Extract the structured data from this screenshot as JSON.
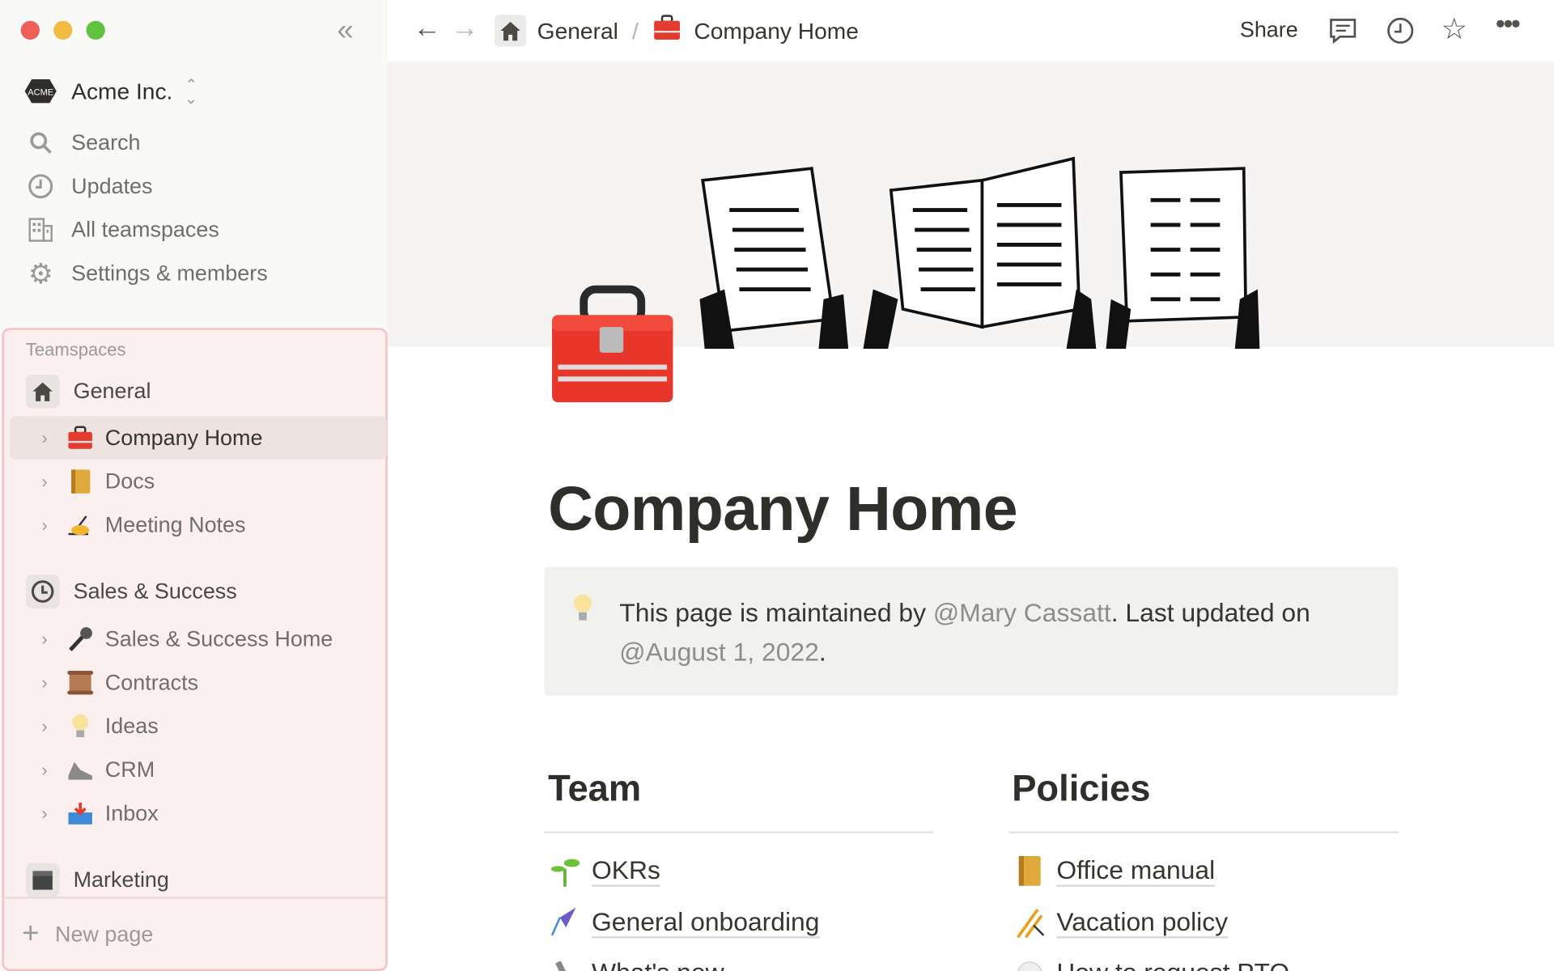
{
  "window": {
    "controls": [
      "close",
      "minimize",
      "zoom"
    ],
    "colors": {
      "close": "#ee5f57",
      "minimize": "#f0bc43",
      "zoom": "#60c23f"
    }
  },
  "sidebar": {
    "workspace": {
      "logo_text": "ACME",
      "name": "Acme Inc."
    },
    "nav": [
      {
        "label": "Search",
        "icon": "search-icon"
      },
      {
        "label": "Updates",
        "icon": "clock-icon"
      },
      {
        "label": "All teamspaces",
        "icon": "building-icon"
      },
      {
        "label": "Settings & members",
        "icon": "gear-icon"
      }
    ],
    "teamspaces_label": "Teamspaces",
    "teamspaces": [
      {
        "name": "General",
        "icon": "house-icon",
        "pages": [
          {
            "label": "Company Home",
            "icon": "toolbox-icon",
            "selected": true
          },
          {
            "label": "Docs",
            "icon": "notebook-icon"
          },
          {
            "label": "Meeting Notes",
            "icon": "writing-hand-icon"
          }
        ]
      },
      {
        "name": "Sales & Success",
        "icon": "history-icon",
        "pages": [
          {
            "label": "Sales & Success Home",
            "icon": "microphone-icon"
          },
          {
            "label": "Contracts",
            "icon": "scroll-icon"
          },
          {
            "label": "Ideas",
            "icon": "lightbulb-icon"
          },
          {
            "label": "CRM",
            "icon": "shoe-icon"
          },
          {
            "label": "Inbox",
            "icon": "inbox-tray-icon"
          }
        ]
      },
      {
        "name": "Marketing",
        "icon": "clapper-icon",
        "pages": []
      }
    ],
    "new_page": "New page",
    "highlight_color": "#f4c2c2"
  },
  "topbar": {
    "breadcrumb": [
      {
        "label": "General",
        "icon": "house-icon"
      },
      {
        "label": "Company Home",
        "icon": "toolbox-icon"
      }
    ],
    "separator": "/",
    "share": "Share"
  },
  "page": {
    "title": "Company Home",
    "icon": "toolbox-icon",
    "callout": {
      "icon": "lightbulb-icon",
      "prefix": "This page is maintained by ",
      "mention_user": "@Mary Cassatt",
      "middle": ". Last updated on ",
      "mention_date": "@August 1, 2022",
      "suffix": "."
    },
    "columns": [
      {
        "heading": "Team",
        "links": [
          {
            "label": "OKRs",
            "icon": "seedling-icon"
          },
          {
            "label": "General onboarding",
            "icon": "kite-icon"
          },
          {
            "label": "What's new",
            "icon": "pen-icon"
          }
        ]
      },
      {
        "heading": "Policies",
        "links": [
          {
            "label": "Office manual",
            "icon": "notebook-icon"
          },
          {
            "label": "Vacation policy",
            "icon": "fireworks-icon"
          },
          {
            "label": "How to request PTO",
            "icon": "bubble-icon"
          }
        ]
      }
    ]
  }
}
